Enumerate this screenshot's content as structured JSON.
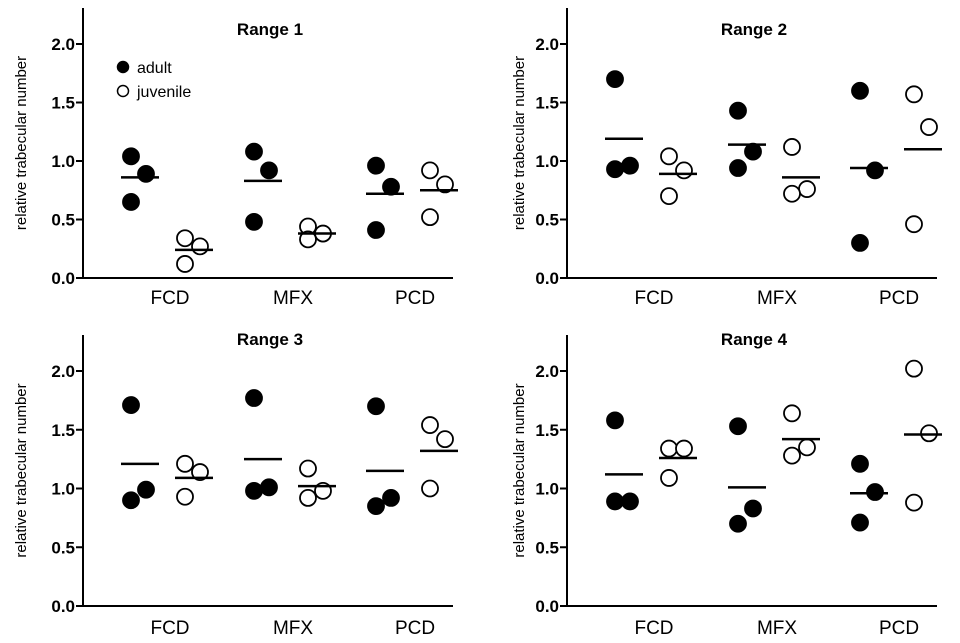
{
  "chart_data": [
    {
      "type": "scatter",
      "title": "Range 1",
      "ylabel": "relative trabecular number",
      "categories": [
        "FCD",
        "MFX",
        "PCD"
      ],
      "yticks": [
        "0.0",
        "0.5",
        "1.0",
        "1.5",
        "2.0"
      ],
      "ylim": [
        0,
        2.3
      ],
      "legend": {
        "position": "top-left",
        "entries": [
          {
            "label": "adult",
            "marker": "filled-circle"
          },
          {
            "label": "juvenile",
            "marker": "open-circle"
          }
        ]
      },
      "series": [
        {
          "name": "adult",
          "values": [
            [
              1.04,
              0.89,
              0.65
            ],
            [
              1.08,
              0.92,
              0.48
            ],
            [
              0.96,
              0.78,
              0.41
            ]
          ],
          "means": [
            0.86,
            0.83,
            0.72
          ]
        },
        {
          "name": "juvenile",
          "values": [
            [
              0.34,
              0.27,
              0.12
            ],
            [
              0.44,
              0.38,
              0.33
            ],
            [
              0.92,
              0.8,
              0.52
            ]
          ],
          "means": [
            0.24,
            0.38,
            0.75
          ]
        }
      ]
    },
    {
      "type": "scatter",
      "title": "Range 2",
      "ylabel": "relative trabecular number",
      "categories": [
        "FCD",
        "MFX",
        "PCD"
      ],
      "yticks": [
        "0.0",
        "0.5",
        "1.0",
        "1.5",
        "2.0"
      ],
      "ylim": [
        0,
        2.3
      ],
      "series": [
        {
          "name": "adult",
          "values": [
            [
              1.7,
              0.96,
              0.93
            ],
            [
              1.43,
              1.08,
              0.94
            ],
            [
              1.6,
              0.92,
              0.3
            ]
          ],
          "means": [
            1.19,
            1.14,
            0.94
          ]
        },
        {
          "name": "juvenile",
          "values": [
            [
              1.04,
              0.92,
              0.7
            ],
            [
              1.12,
              0.76,
              0.72
            ],
            [
              1.57,
              1.29,
              0.46
            ]
          ],
          "means": [
            0.89,
            0.86,
            1.1
          ]
        }
      ]
    },
    {
      "type": "scatter",
      "title": "Range 3",
      "ylabel": "relative trabecular number",
      "categories": [
        "FCD",
        "MFX",
        "PCD"
      ],
      "yticks": [
        "0.0",
        "0.5",
        "1.0",
        "1.5",
        "2.0"
      ],
      "ylim": [
        0,
        2.3
      ],
      "series": [
        {
          "name": "adult",
          "values": [
            [
              1.71,
              0.99,
              0.9
            ],
            [
              1.77,
              1.01,
              0.98
            ],
            [
              1.7,
              0.92,
              0.85
            ]
          ],
          "means": [
            1.21,
            1.25,
            1.15
          ]
        },
        {
          "name": "juvenile",
          "values": [
            [
              1.21,
              1.14,
              0.93
            ],
            [
              1.17,
              0.98,
              0.92
            ],
            [
              1.54,
              1.42,
              1.0
            ]
          ],
          "means": [
            1.09,
            1.02,
            1.32
          ]
        }
      ]
    },
    {
      "type": "scatter",
      "title": "Range 4",
      "ylabel": "relative trabecular number",
      "categories": [
        "FCD",
        "MFX",
        "PCD"
      ],
      "yticks": [
        "0.0",
        "0.5",
        "1.0",
        "1.5",
        "2.0"
      ],
      "ylim": [
        0,
        2.3
      ],
      "series": [
        {
          "name": "adult",
          "values": [
            [
              1.58,
              0.89,
              0.89
            ],
            [
              1.53,
              0.83,
              0.7
            ],
            [
              1.21,
              0.97,
              0.71
            ]
          ],
          "means": [
            1.12,
            1.01,
            0.96
          ]
        },
        {
          "name": "juvenile",
          "values": [
            [
              1.34,
              1.34,
              1.09
            ],
            [
              1.64,
              1.35,
              1.28
            ],
            [
              2.02,
              1.47,
              0.88
            ]
          ],
          "means": [
            1.26,
            1.42,
            1.46
          ]
        }
      ]
    }
  ]
}
